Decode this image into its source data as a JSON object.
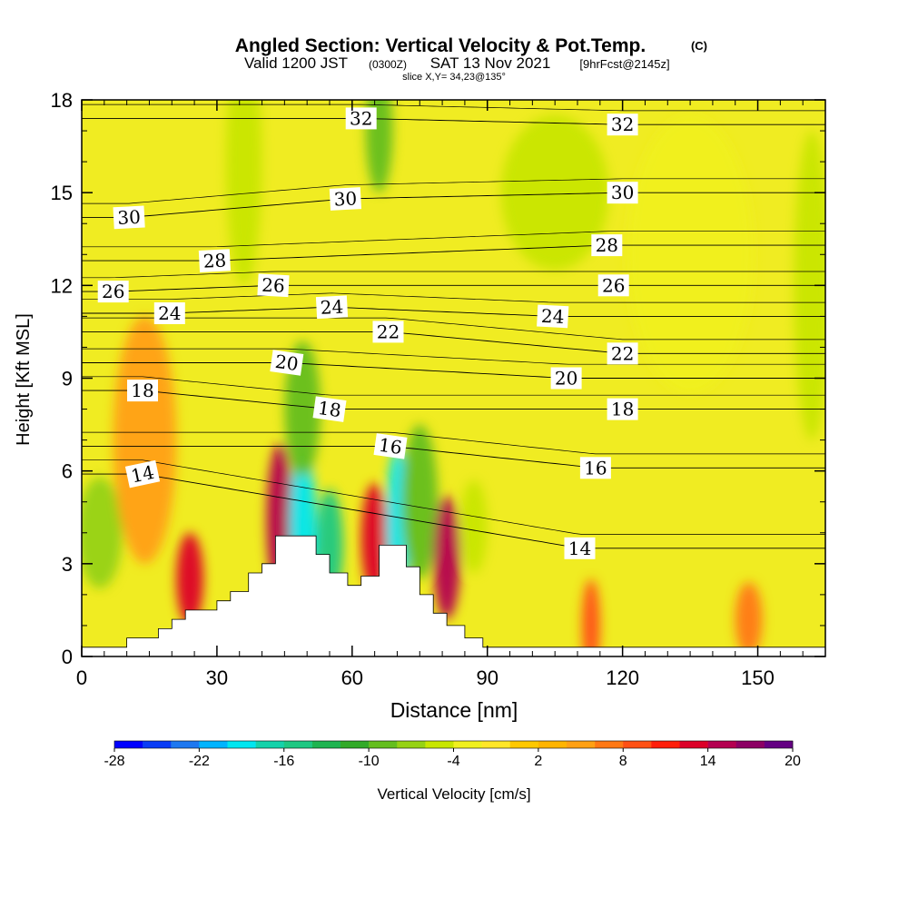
{
  "chart_data": {
    "type": "heatmap",
    "title": {
      "main": "Angled Section: Vertical Velocity & Pot.Temp.",
      "copyright": "(C)",
      "line2_a": "Valid 1200 JST",
      "line2_b": "(0300Z)",
      "line2_c": "SAT 13 Nov 2021",
      "line2_d": "[9hrFcst@2145z]",
      "line3": "slice X,Y= 34,23@135°"
    },
    "xlabel": "Distance [nm]",
    "ylabel": "Height [Kft MSL]",
    "xlim": [
      0,
      165
    ],
    "ylim": [
      0,
      18
    ],
    "x_ticks": [
      "0",
      "30",
      "60",
      "90",
      "120",
      "150"
    ],
    "y_ticks": [
      "0",
      "3",
      "6",
      "9",
      "12",
      "15",
      "18"
    ],
    "colorbar": {
      "label": "Vertical Velocity [cm/s]",
      "tick_labels": [
        "-28",
        "-22",
        "-16",
        "-10",
        "-4",
        "2",
        "8",
        "14",
        "20"
      ],
      "colors": [
        "#0000ff",
        "#0a3cf5",
        "#1e78f0",
        "#00b4ff",
        "#00e6f0",
        "#14d2aa",
        "#1ec882",
        "#1eb450",
        "#32aa28",
        "#64be1e",
        "#96d214",
        "#c8e600",
        "#f0f01e",
        "#ffe628",
        "#ffc800",
        "#ffb400",
        "#ffa014",
        "#ff7814",
        "#ff5014",
        "#ff1e0a",
        "#dc0028",
        "#b40050",
        "#8c0064",
        "#640082"
      ]
    },
    "terrain_profile": {
      "x_nm": [
        0,
        10,
        10,
        17,
        17,
        20,
        20,
        23,
        23,
        30,
        30,
        33,
        33,
        37,
        37,
        40,
        40,
        43,
        43,
        47,
        47,
        52,
        52,
        55,
        55,
        59,
        59,
        62,
        62,
        66,
        66,
        72,
        72,
        75,
        75,
        78,
        78,
        81,
        81,
        85,
        85,
        89,
        89,
        93,
        93,
        165
      ],
      "height_kft": [
        0.3,
        0.3,
        0.6,
        0.6,
        0.9,
        0.9,
        1.2,
        1.2,
        1.5,
        1.5,
        1.8,
        1.8,
        2.1,
        2.1,
        2.7,
        2.7,
        3.0,
        3.0,
        3.9,
        3.9,
        3.9,
        3.9,
        3.3,
        3.3,
        2.7,
        2.7,
        2.3,
        2.3,
        2.6,
        2.6,
        3.6,
        3.6,
        2.9,
        2.9,
        2.0,
        2.0,
        1.4,
        1.4,
        1.0,
        1.0,
        0.6,
        0.6,
        0.3,
        0.3,
        0.3,
        0.3
      ]
    },
    "vertical_velocity_features": [
      {
        "x_nm": 4,
        "z_kft": 4.0,
        "w_cm_s": -8,
        "rx": 5,
        "rz": 1.8
      },
      {
        "x_nm": 14,
        "z_kft": 7.0,
        "w_cm_s": 5,
        "rx": 7,
        "rz": 4.0
      },
      {
        "x_nm": 24,
        "z_kft": 2.5,
        "w_cm_s": 12,
        "rx": 3,
        "rz": 1.5
      },
      {
        "x_nm": 36,
        "z_kft": 16,
        "w_cm_s": -6,
        "rx": 4,
        "rz": 4.0
      },
      {
        "x_nm": 44,
        "z_kft": 4.4,
        "w_cm_s": 15,
        "rx": 3,
        "rz": 2.5
      },
      {
        "x_nm": 49,
        "z_kft": 4.2,
        "w_cm_s": -20,
        "rx": 3,
        "rz": 2.6
      },
      {
        "x_nm": 49,
        "z_kft": 8.0,
        "w_cm_s": -10,
        "rx": 4,
        "rz": 2.2
      },
      {
        "x_nm": 55,
        "z_kft": 3.6,
        "w_cm_s": -15,
        "rx": 3,
        "rz": 1.8
      },
      {
        "x_nm": 65,
        "z_kft": 3.8,
        "w_cm_s": 12,
        "rx": 3,
        "rz": 1.8
      },
      {
        "x_nm": 70,
        "z_kft": 4.2,
        "w_cm_s": -20,
        "rx": 2.5,
        "rz": 2.5
      },
      {
        "x_nm": 75,
        "z_kft": 5.0,
        "w_cm_s": -10,
        "rx": 4,
        "rz": 2.5
      },
      {
        "x_nm": 81,
        "z_kft": 3.2,
        "w_cm_s": 14,
        "rx": 3,
        "rz": 2.0
      },
      {
        "x_nm": 87,
        "z_kft": 4.2,
        "w_cm_s": -6,
        "rx": 3,
        "rz": 1.5
      },
      {
        "x_nm": 66,
        "z_kft": 17.0,
        "w_cm_s": -10,
        "rx": 3,
        "rz": 2.0
      },
      {
        "x_nm": 105,
        "z_kft": 15.0,
        "w_cm_s": -6,
        "rx": 12,
        "rz": 2.5
      },
      {
        "x_nm": 135,
        "z_kft": 13.0,
        "w_cm_s": -4,
        "rx": 14,
        "rz": 4.5
      },
      {
        "x_nm": 162,
        "z_kft": 12.0,
        "w_cm_s": -6,
        "rx": 4,
        "rz": 5.0
      },
      {
        "x_nm": 113,
        "z_kft": 1.0,
        "w_cm_s": 8,
        "rx": 2,
        "rz": 1.5
      },
      {
        "x_nm": 148,
        "z_kft": 1.2,
        "w_cm_s": 6,
        "rx": 3,
        "rz": 1.2
      }
    ],
    "isentrope_labels": [
      {
        "text": "32",
        "x_nm": 62,
        "z_kft": 17.4,
        "rot": 0
      },
      {
        "text": "32",
        "x_nm": 120,
        "z_kft": 17.2,
        "rot": 0
      },
      {
        "text": "30",
        "x_nm": 10.5,
        "z_kft": 14.2,
        "rot": -3
      },
      {
        "text": "30",
        "x_nm": 58.5,
        "z_kft": 14.8,
        "rot": -3
      },
      {
        "text": "30",
        "x_nm": 120,
        "z_kft": 15.0,
        "rot": 0
      },
      {
        "text": "28",
        "x_nm": 29.5,
        "z_kft": 12.8,
        "rot": -3
      },
      {
        "text": "28",
        "x_nm": 116.5,
        "z_kft": 13.3,
        "rot": 0
      },
      {
        "text": "26",
        "x_nm": 7,
        "z_kft": 11.8,
        "rot": 0
      },
      {
        "text": "26",
        "x_nm": 42.5,
        "z_kft": 12.0,
        "rot": 3
      },
      {
        "text": "26",
        "x_nm": 118,
        "z_kft": 12.0,
        "rot": 0
      },
      {
        "text": "24",
        "x_nm": 19.5,
        "z_kft": 11.1,
        "rot": 0
      },
      {
        "text": "24",
        "x_nm": 55.5,
        "z_kft": 11.3,
        "rot": -3
      },
      {
        "text": "24",
        "x_nm": 104.5,
        "z_kft": 11.0,
        "rot": 3
      },
      {
        "text": "22",
        "x_nm": 68,
        "z_kft": 10.5,
        "rot": 0
      },
      {
        "text": "22",
        "x_nm": 120,
        "z_kft": 9.8,
        "rot": 0
      },
      {
        "text": "20",
        "x_nm": 45.5,
        "z_kft": 9.5,
        "rot": 8
      },
      {
        "text": "20",
        "x_nm": 107.5,
        "z_kft": 9.0,
        "rot": 0
      },
      {
        "text": "18",
        "x_nm": 13.5,
        "z_kft": 8.6,
        "rot": 0
      },
      {
        "text": "18",
        "x_nm": 55,
        "z_kft": 8.0,
        "rot": 8
      },
      {
        "text": "18",
        "x_nm": 120,
        "z_kft": 8.0,
        "rot": 0
      },
      {
        "text": "16",
        "x_nm": 68.5,
        "z_kft": 6.8,
        "rot": 8
      },
      {
        "text": "16",
        "x_nm": 114,
        "z_kft": 6.1,
        "rot": 0
      },
      {
        "text": "14",
        "x_nm": 13.5,
        "z_kft": 5.9,
        "rot": -12
      },
      {
        "text": "14",
        "x_nm": 110.5,
        "z_kft": 3.5,
        "rot": 0
      }
    ],
    "grid": false,
    "colors": {
      "terrain": "#ffffff",
      "contour": "#000000"
    }
  }
}
